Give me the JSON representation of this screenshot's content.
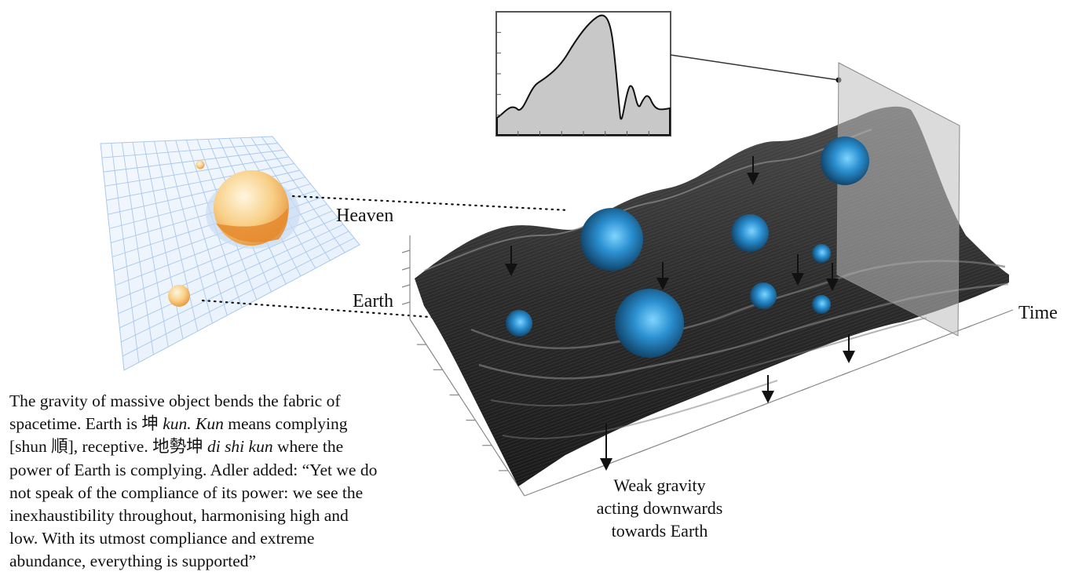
{
  "labels": {
    "heaven": "Heaven",
    "earth": "Earth",
    "time": "Time"
  },
  "caption": {
    "lines": [
      "Weak gravity",
      "acting downwards",
      "towards Earth"
    ]
  },
  "description": {
    "lines": [
      [
        {
          "t": "The gravity of massive object bends the fabric of"
        }
      ],
      [
        {
          "t": "spacetime. Earth is 坤 "
        },
        {
          "t": "kun. Kun",
          "i": true
        },
        {
          "t": " means complying"
        }
      ],
      [
        {
          "t": "[shun 順], receptive. 地勢坤 "
        },
        {
          "t": "di shi kun",
          "i": true
        },
        {
          "t": " where the"
        }
      ],
      [
        {
          "t": "power of Earth is complying. Adler added: “Yet we do"
        }
      ],
      [
        {
          "t": "not speak of the compliance of its power: we see the"
        }
      ],
      [
        {
          "t": "inexhaustibility throughout, harmonising  high and"
        }
      ],
      [
        {
          "t": "low. With its utmost compliance and extreme"
        }
      ],
      [
        {
          "t": "abundance, everything is supported”"
        }
      ]
    ]
  },
  "colors": {
    "sphere_blue": "#2a8fd0",
    "surface_dark": "#2b2b2b",
    "grid_blue": "#a9c8ea",
    "mass_orange": "#f3b25a",
    "plot_fill": "#c8c8c8"
  },
  "icons": {
    "spheres": "blue-sphere-icon",
    "arrows": "down-arrow-icon"
  }
}
